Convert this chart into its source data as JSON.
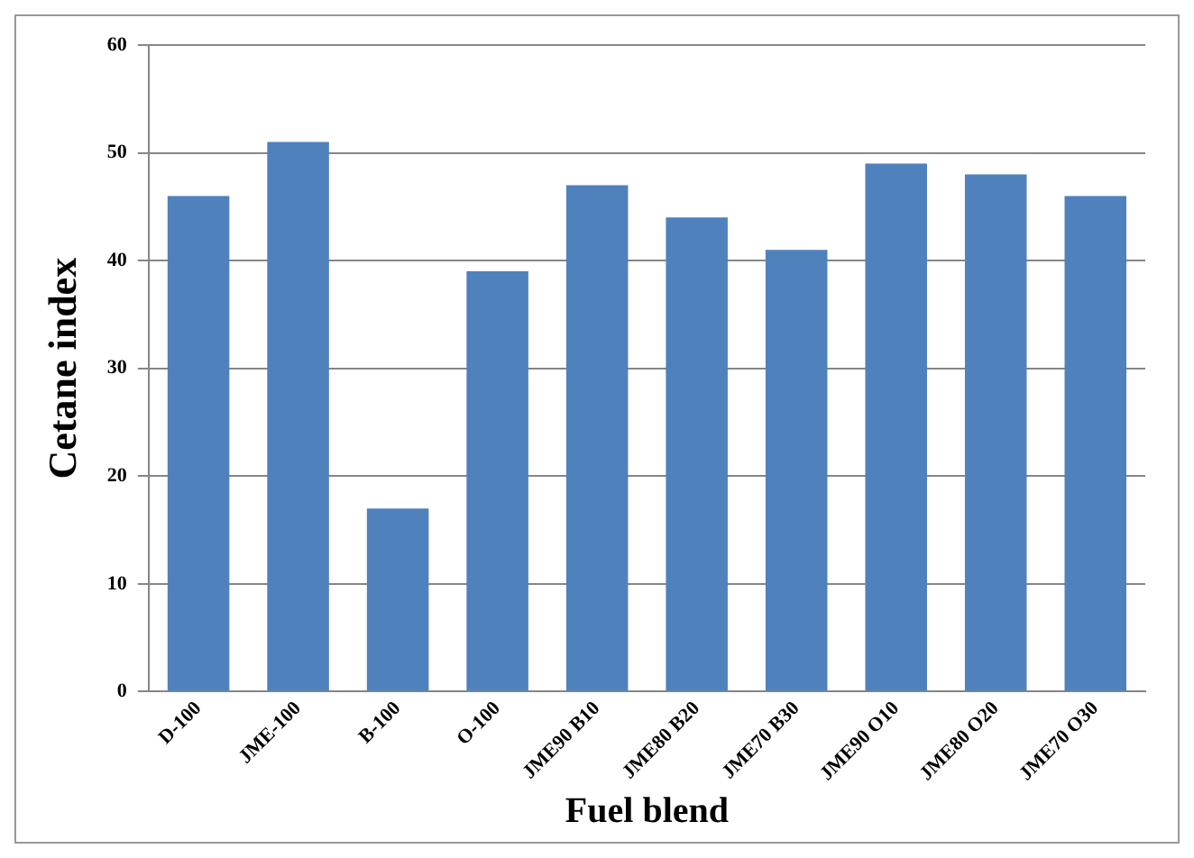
{
  "chart_data": {
    "type": "bar",
    "xlabel": "Fuel blend",
    "ylabel": "Cetane index",
    "categories": [
      "D-100",
      "JME-100",
      "B-100",
      "O-100",
      "JME90 B10",
      "JME80 B20",
      "JME70 B30",
      "JME90 O10",
      "JME80 O20",
      "JME70 O30"
    ],
    "values": [
      46,
      51,
      17,
      39,
      47,
      44,
      41,
      49,
      48,
      46
    ],
    "color": "#4f81bd",
    "ylim": [
      0,
      60
    ],
    "yticks": [
      0,
      10,
      20,
      30,
      40,
      50,
      60
    ],
    "grid": "y",
    "legend": false
  }
}
